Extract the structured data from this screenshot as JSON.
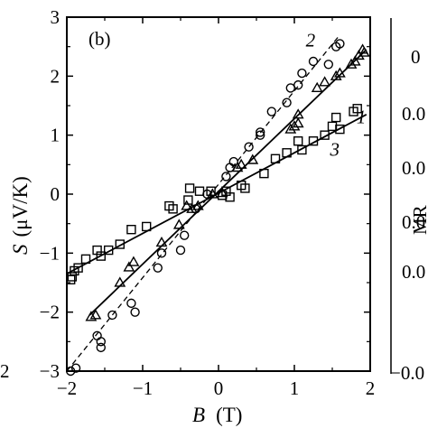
{
  "chart_data": {
    "type": "scatter",
    "panel_label": "(b)",
    "xlabel_symbol": "B",
    "xlabel_unit": "(T)",
    "ylabel_symbol": "S",
    "ylabel_unit": "(μV/K)",
    "xlim": [
      -2,
      2
    ],
    "ylim": [
      -3,
      3
    ],
    "x_ticks": [
      -2,
      -1,
      0,
      1,
      2
    ],
    "y_ticks": [
      -3,
      -2,
      -1,
      0,
      1,
      2,
      3
    ],
    "x_tick_labels": [
      "−2",
      "−1",
      "0",
      "1",
      "2"
    ],
    "y_tick_labels": [
      "−3",
      "−2",
      "−1",
      "0",
      "1",
      "2",
      "3"
    ],
    "grid": false,
    "series": [
      {
        "name": "1",
        "marker": "triangle",
        "fit": {
          "type": "line",
          "style": "solid",
          "x": [
            -1.7,
            1.95
          ],
          "y": [
            -2.05,
            2.45
          ]
        },
        "label_pos": [
          1.82,
          1.2
        ],
        "points": [
          [
            -1.68,
            -2.08
          ],
          [
            -1.62,
            -2.05
          ],
          [
            -1.3,
            -1.5
          ],
          [
            -1.18,
            -1.24
          ],
          [
            -1.12,
            -1.15
          ],
          [
            -0.75,
            -0.82
          ],
          [
            -0.52,
            -0.52
          ],
          [
            -0.42,
            -0.2
          ],
          [
            -0.35,
            -0.25
          ],
          [
            -0.27,
            -0.2
          ],
          [
            -0.08,
            0.0
          ],
          [
            0.05,
            0.02
          ],
          [
            0.25,
            0.45
          ],
          [
            0.3,
            0.5
          ],
          [
            0.45,
            0.58
          ],
          [
            0.95,
            1.1
          ],
          [
            1.0,
            1.15
          ],
          [
            1.05,
            1.2
          ],
          [
            1.05,
            1.35
          ],
          [
            1.3,
            1.8
          ],
          [
            1.4,
            1.9
          ],
          [
            1.55,
            2.0
          ],
          [
            1.6,
            2.05
          ],
          [
            1.75,
            2.2
          ],
          [
            1.8,
            2.25
          ],
          [
            1.85,
            2.35
          ],
          [
            1.9,
            2.45
          ],
          [
            1.92,
            2.4
          ]
        ]
      },
      {
        "name": "2",
        "marker": "circle",
        "fit": {
          "type": "line",
          "style": "dashed",
          "x": [
            -2.0,
            1.6
          ],
          "y": [
            -3.0,
            2.7
          ]
        },
        "label_pos": [
          1.15,
          2.5
        ],
        "points": [
          [
            -1.95,
            -3.0
          ],
          [
            -1.88,
            -2.95
          ],
          [
            -1.6,
            -2.4
          ],
          [
            -1.55,
            -2.5
          ],
          [
            -1.55,
            -2.6
          ],
          [
            -1.4,
            -2.05
          ],
          [
            -1.15,
            -1.85
          ],
          [
            -1.1,
            -2.0
          ],
          [
            -0.8,
            -1.25
          ],
          [
            -0.75,
            -1.0
          ],
          [
            -0.5,
            -0.95
          ],
          [
            -0.45,
            -0.7
          ],
          [
            -0.3,
            -0.25
          ],
          [
            -0.15,
            0.0
          ],
          [
            0.1,
            0.3
          ],
          [
            0.15,
            0.45
          ],
          [
            0.2,
            0.55
          ],
          [
            0.4,
            0.8
          ],
          [
            0.55,
            1.0
          ],
          [
            0.55,
            1.05
          ],
          [
            0.7,
            1.4
          ],
          [
            0.9,
            1.55
          ],
          [
            0.95,
            1.8
          ],
          [
            1.05,
            1.85
          ],
          [
            1.1,
            2.05
          ],
          [
            1.25,
            2.25
          ],
          [
            1.45,
            2.2
          ],
          [
            1.55,
            2.5
          ],
          [
            1.6,
            2.55
          ]
        ]
      },
      {
        "name": "3",
        "marker": "square",
        "fit": {
          "type": "line",
          "style": "solid",
          "x": [
            -2.0,
            1.95
          ],
          "y": [
            -1.35,
            1.35
          ]
        },
        "label_pos": [
          1.47,
          0.65
        ],
        "points": [
          [
            -1.95,
            -1.45
          ],
          [
            -1.93,
            -1.4
          ],
          [
            -1.9,
            -1.3
          ],
          [
            -1.85,
            -1.25
          ],
          [
            -1.75,
            -1.1
          ],
          [
            -1.6,
            -0.95
          ],
          [
            -1.55,
            -1.05
          ],
          [
            -1.45,
            -0.95
          ],
          [
            -1.3,
            -0.85
          ],
          [
            -1.15,
            -0.6
          ],
          [
            -0.95,
            -0.55
          ],
          [
            -0.65,
            -0.2
          ],
          [
            -0.6,
            -0.25
          ],
          [
            -0.4,
            -0.1
          ],
          [
            -0.38,
            0.1
          ],
          [
            -0.25,
            0.05
          ],
          [
            -0.1,
            0.05
          ],
          [
            0.05,
            -0.02
          ],
          [
            0.1,
            0.05
          ],
          [
            0.15,
            -0.05
          ],
          [
            0.3,
            0.15
          ],
          [
            0.35,
            0.1
          ],
          [
            0.6,
            0.35
          ],
          [
            0.75,
            0.6
          ],
          [
            0.9,
            0.7
          ],
          [
            1.05,
            0.9
          ],
          [
            1.1,
            0.75
          ],
          [
            1.25,
            0.9
          ],
          [
            1.4,
            1.0
          ],
          [
            1.5,
            1.15
          ],
          [
            1.55,
            1.3
          ],
          [
            1.6,
            1.1
          ],
          [
            1.78,
            1.4
          ],
          [
            1.83,
            1.45
          ]
        ]
      }
    ]
  },
  "side_fragments": {
    "right_axis_label": "MR",
    "right_tick_labels": [
      "0",
      "0.0",
      "0.0",
      "0.0",
      "0.0",
      "−0.0"
    ],
    "left_tick_label": "2"
  }
}
